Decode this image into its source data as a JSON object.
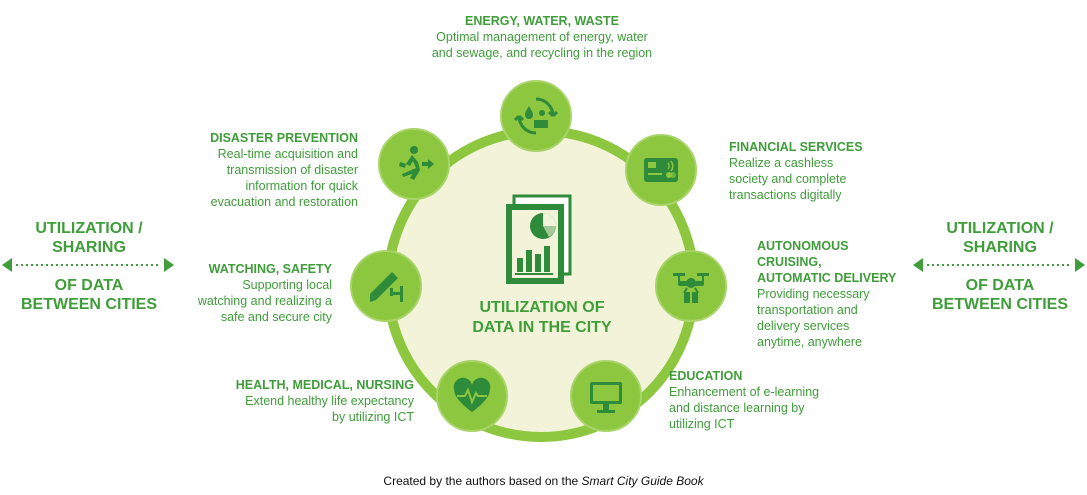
{
  "center": {
    "line1": "UTILIZATION OF",
    "line2": "DATA IN THE CITY"
  },
  "side": {
    "head1": "UTILIZATION /",
    "head2": "SHARING",
    "sub1": "OF DATA",
    "sub2": "BETWEEN CITIES"
  },
  "nodes": {
    "energy": {
      "icon": "recycle-water-solar-icon",
      "title": "ENERGY, WATER, WASTE",
      "lines": [
        "Optimal management of energy, water",
        "and sewage, and recycling in the region"
      ]
    },
    "financial": {
      "icon": "credit-card-icon",
      "title": "FINANCIAL SERVICES",
      "lines": [
        "Realize a cashless",
        "society and complete",
        "transactions digitally"
      ]
    },
    "autonomous": {
      "icon": "drone-delivery-icon",
      "title_lines": [
        "AUTONOMOUS",
        "CRUISING,",
        "AUTOMATIC DELIVERY"
      ],
      "lines": [
        "Providing necessary",
        "transportation and",
        "delivery services",
        "anytime, anywhere"
      ]
    },
    "education": {
      "icon": "monitor-icon",
      "title": "EDUCATION",
      "lines": [
        "Enhancement of e-learning",
        "and distance learning by",
        "utilizing ICT"
      ]
    },
    "health": {
      "icon": "heart-pulse-icon",
      "title": "HEALTH, MEDICAL, NURSING",
      "lines": [
        "Extend healthy life expectancy",
        "by utilizing ICT"
      ]
    },
    "watching": {
      "icon": "security-camera-icon",
      "title": "WATCHING, SAFETY",
      "lines": [
        "Supporting local",
        "watching and realizing a",
        "safe and secure city"
      ]
    },
    "disaster": {
      "icon": "emergency-exit-icon",
      "title": "DISASTER PREVENTION",
      "lines": [
        "Real-time acquisition and",
        "transmission of disaster",
        "information for quick",
        "evacuation and restoration"
      ]
    }
  },
  "caption": {
    "prefix": "Created by the authors based on the ",
    "source": "Smart City Guide Book"
  },
  "colors": {
    "green_dark": "#3f9d3a",
    "green_node": "#8dc63f",
    "ring_fill": "#f2f3d9",
    "icon_dark": "#2e8b3a"
  }
}
